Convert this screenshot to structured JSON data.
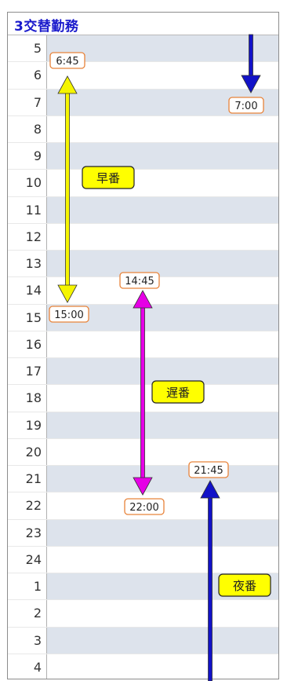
{
  "header": {
    "title": "3交替勤務"
  },
  "hours": [
    "5",
    "6",
    "7",
    "8",
    "9",
    "10",
    "11",
    "12",
    "13",
    "14",
    "15",
    "16",
    "17",
    "18",
    "19",
    "20",
    "21",
    "22",
    "23",
    "24",
    "1",
    "2",
    "3",
    "4"
  ],
  "shifts": [
    {
      "name": "早番",
      "start": "6:45",
      "end": "15:00",
      "color": "#f5f500",
      "style": "double"
    },
    {
      "name": "遅番",
      "start": "14:45",
      "end": "22:00",
      "color": "#e600e6",
      "style": "double"
    },
    {
      "name": "夜番",
      "start": "21:45",
      "end": "7:00",
      "color": "#1212c8",
      "style": "split"
    }
  ]
}
